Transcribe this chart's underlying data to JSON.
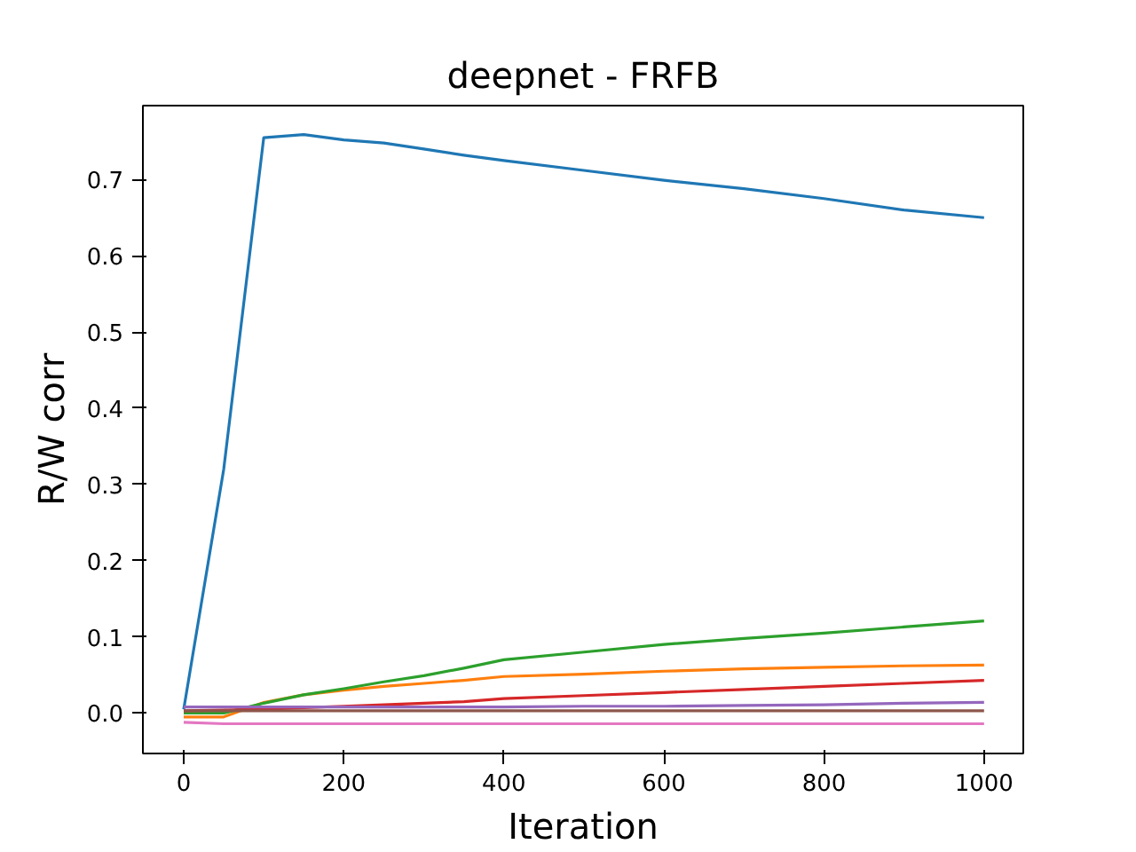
{
  "chart_data": {
    "type": "line",
    "title": "deepnet - FRFB",
    "xlabel": "Iteration",
    "ylabel": "R/W corr",
    "x": [
      0,
      50,
      100,
      150,
      200,
      250,
      300,
      350,
      400,
      500,
      600,
      700,
      800,
      900,
      1000
    ],
    "series": [
      {
        "color": "#1f77b4",
        "values": [
          0.005,
          0.32,
          0.755,
          0.759,
          0.752,
          0.748,
          0.74,
          0.732,
          0.725,
          0.712,
          0.699,
          0.688,
          0.675,
          0.66,
          0.65
        ]
      },
      {
        "color": "#ff7f0e",
        "values": [
          -0.005,
          -0.005,
          0.014,
          0.024,
          0.03,
          0.035,
          0.039,
          0.043,
          0.048,
          0.051,
          0.055,
          0.058,
          0.06,
          0.062,
          0.063
        ]
      },
      {
        "color": "#2ca02c",
        "values": [
          0.0,
          0.0,
          0.013,
          0.024,
          0.032,
          0.041,
          0.049,
          0.059,
          0.07,
          0.08,
          0.09,
          0.098,
          0.105,
          0.113,
          0.121
        ]
      },
      {
        "color": "#d62728",
        "values": [
          0.003,
          0.004,
          0.005,
          0.007,
          0.009,
          0.011,
          0.013,
          0.015,
          0.019,
          0.023,
          0.027,
          0.031,
          0.035,
          0.039,
          0.043
        ]
      },
      {
        "color": "#9467bd",
        "values": [
          0.008,
          0.008,
          0.008,
          0.008,
          0.008,
          0.008,
          0.008,
          0.008,
          0.008,
          0.009,
          0.009,
          0.01,
          0.011,
          0.013,
          0.014
        ]
      },
      {
        "color": "#8c564b",
        "values": [
          0.003,
          0.003,
          0.003,
          0.003,
          0.003,
          0.003,
          0.003,
          0.003,
          0.003,
          0.003,
          0.003,
          0.003,
          0.003,
          0.003,
          0.003
        ]
      },
      {
        "color": "#e377c2",
        "values": [
          -0.012,
          -0.014,
          -0.014,
          -0.014,
          -0.014,
          -0.014,
          -0.014,
          -0.014,
          -0.014,
          -0.014,
          -0.014,
          -0.014,
          -0.014,
          -0.014,
          -0.014
        ]
      }
    ],
    "xlim": [
      -51,
      1049
    ],
    "ylim": [
      -0.053,
      0.797
    ],
    "xticks": [
      0,
      200,
      400,
      600,
      800,
      1000
    ],
    "yticks": [
      {
        "value": 0,
        "label": "0.0"
      },
      0.1,
      0.2,
      0.3,
      0.4,
      0.5,
      0.6,
      0.7
    ],
    "grid": false
  }
}
